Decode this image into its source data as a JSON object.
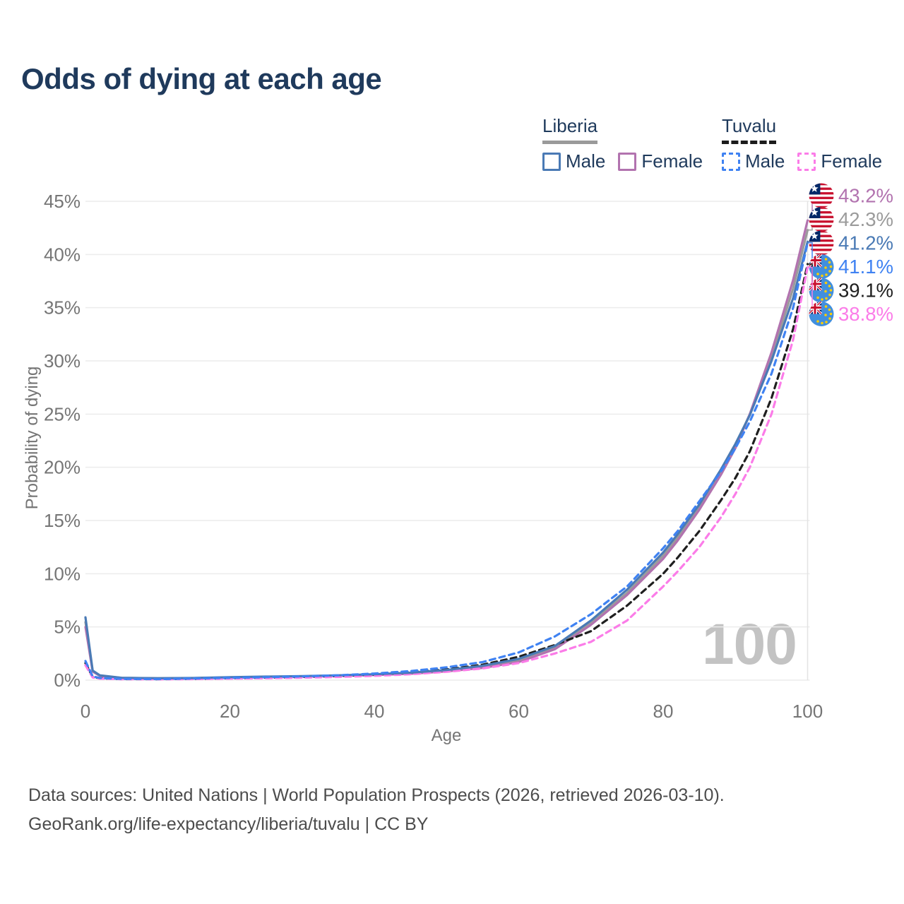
{
  "title": "Odds of dying at each age",
  "watermark": "100",
  "legend": {
    "groups": [
      {
        "label": "Liberia",
        "line_style": "solid",
        "color": "#9a9a9a",
        "items": [
          {
            "label": "Male",
            "color": "#4a7ab5",
            "dashed": false
          },
          {
            "label": "Female",
            "color": "#b273af",
            "dashed": false
          }
        ]
      },
      {
        "label": "Tuvalu",
        "line_style": "dashed",
        "color": "#1c1c1c",
        "items": [
          {
            "label": "Male",
            "color": "#3f82f2",
            "dashed": true
          },
          {
            "label": "Female",
            "color": "#fb7ce8",
            "dashed": true
          }
        ]
      }
    ]
  },
  "footer": {
    "line1": "Data sources: United Nations | World Population Prospects (2026, retrieved 2026-03-10).",
    "line2": "GeoRank.org/life-expectancy/liberia/tuvalu | CC BY"
  },
  "chart_data": {
    "type": "line",
    "title": "Odds of dying at each age",
    "xlabel": "Age",
    "ylabel": "Probability of dying",
    "xlim": [
      0,
      100
    ],
    "ylim": [
      0,
      45
    ],
    "x_ticks": [
      0,
      20,
      40,
      60,
      80,
      100
    ],
    "y_ticks": [
      "0%",
      "5%",
      "10%",
      "15%",
      "20%",
      "25%",
      "30%",
      "35%",
      "40%",
      "45%"
    ],
    "grid": "horizontal",
    "hover_age": 100,
    "ages": [
      0,
      1,
      2,
      5,
      10,
      15,
      20,
      25,
      30,
      35,
      40,
      45,
      50,
      55,
      60,
      65,
      70,
      75,
      80,
      82,
      85,
      88,
      90,
      92,
      95,
      98,
      100
    ],
    "series": [
      {
        "name": "Liberia Female",
        "country": "liberia",
        "sex": "female",
        "color": "#b273af",
        "dashed": false,
        "end_label": "43.2%",
        "values": [
          5.0,
          0.8,
          0.4,
          0.2,
          0.16,
          0.18,
          0.24,
          0.28,
          0.33,
          0.4,
          0.48,
          0.6,
          0.82,
          1.15,
          1.7,
          2.9,
          5.2,
          8.0,
          11.4,
          13.1,
          16.0,
          19.3,
          21.8,
          25.0,
          30.8,
          37.6,
          43.2
        ]
      },
      {
        "name": "Liberia Total",
        "country": "liberia",
        "sex": "total",
        "color": "#9b9b9b",
        "dashed": false,
        "end_label": "42.3%",
        "values": [
          5.45,
          0.85,
          0.42,
          0.21,
          0.17,
          0.19,
          0.26,
          0.3,
          0.35,
          0.42,
          0.51,
          0.65,
          0.88,
          1.25,
          1.85,
          3.05,
          5.4,
          8.2,
          11.7,
          13.4,
          16.2,
          19.5,
          22.0,
          25.0,
          30.3,
          36.8,
          42.3
        ]
      },
      {
        "name": "Liberia Male",
        "country": "liberia",
        "sex": "male",
        "color": "#4a7ab5",
        "dashed": false,
        "end_label": "41.2%",
        "values": [
          5.9,
          0.9,
          0.45,
          0.22,
          0.18,
          0.2,
          0.28,
          0.33,
          0.38,
          0.45,
          0.55,
          0.7,
          0.95,
          1.35,
          2.0,
          3.2,
          5.6,
          8.5,
          12.0,
          13.7,
          16.5,
          19.8,
          22.2,
          24.9,
          30.0,
          35.9,
          41.2
        ]
      },
      {
        "name": "Tuvalu Male",
        "country": "tuvalu",
        "sex": "male",
        "color": "#3f82f2",
        "dashed": true,
        "end_label": "41.1%",
        "values": [
          1.8,
          0.35,
          0.2,
          0.12,
          0.1,
          0.15,
          0.22,
          0.28,
          0.35,
          0.45,
          0.62,
          0.85,
          1.2,
          1.7,
          2.6,
          4.1,
          6.2,
          8.8,
          12.4,
          14.0,
          16.8,
          19.6,
          21.8,
          24.3,
          28.8,
          35.0,
          41.1
        ]
      },
      {
        "name": "Tuvalu Total",
        "country": "tuvalu",
        "sex": "total",
        "color": "#1f1f1f",
        "dashed": true,
        "end_label": "39.1%",
        "values": [
          1.6,
          0.3,
          0.17,
          0.1,
          0.09,
          0.12,
          0.18,
          0.23,
          0.29,
          0.38,
          0.52,
          0.72,
          1.0,
          1.45,
          2.2,
          3.3,
          4.6,
          7.0,
          10.0,
          11.5,
          14.0,
          16.9,
          19.0,
          21.5,
          26.5,
          33.0,
          39.1
        ]
      },
      {
        "name": "Tuvalu Female",
        "country": "tuvalu",
        "sex": "female",
        "color": "#fb7ce8",
        "dashed": true,
        "end_label": "38.8%",
        "values": [
          1.4,
          0.25,
          0.14,
          0.09,
          0.08,
          0.1,
          0.14,
          0.18,
          0.23,
          0.3,
          0.4,
          0.55,
          0.78,
          1.1,
          1.6,
          2.5,
          3.6,
          5.6,
          8.8,
          10.2,
          12.5,
          15.3,
          17.5,
          20.0,
          25.0,
          32.0,
          38.8
        ]
      }
    ]
  }
}
